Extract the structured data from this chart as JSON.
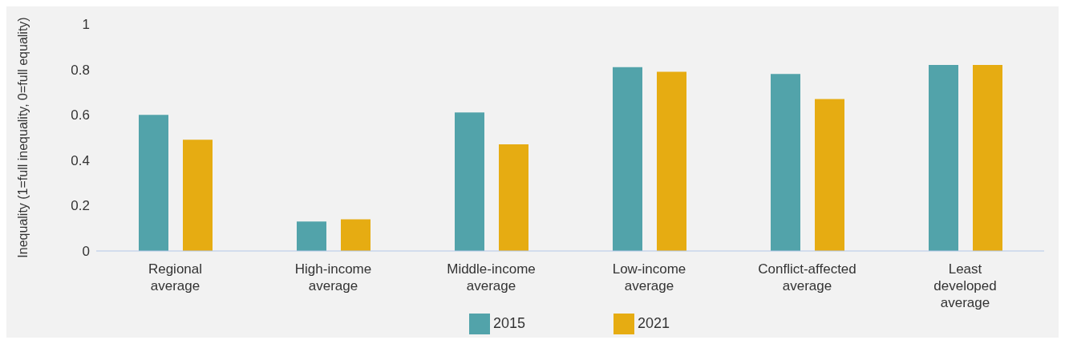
{
  "chart_data": {
    "type": "bar",
    "ylabel": "Inequality (1=full inequality, 0=full equality)",
    "categories": [
      "Regional average",
      "High-income average",
      "Middle-income average",
      "Low-income average",
      "Conflict-affected average",
      "Least developed average"
    ],
    "series": [
      {
        "name": "2015",
        "color": "#52a3aa",
        "values": [
          0.6,
          0.13,
          0.61,
          0.81,
          0.78,
          0.82
        ]
      },
      {
        "name": "2021",
        "color": "#e6ac12",
        "values": [
          0.49,
          0.14,
          0.47,
          0.79,
          0.67,
          0.82
        ]
      }
    ],
    "ylim": [
      0,
      1
    ],
    "yticks": [
      0,
      0.2,
      0.4,
      0.6,
      0.8,
      1
    ],
    "grid": false,
    "legend": "bottom"
  }
}
